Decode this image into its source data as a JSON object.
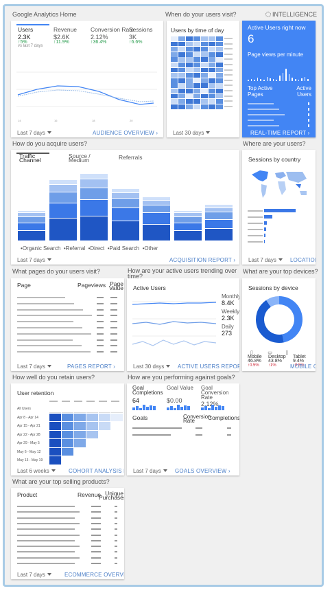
{
  "header": {
    "home_title": "Google Analytics Home",
    "intelligence_label": "INTELLIGENCE"
  },
  "sections": {
    "q_visit_time": "When do your users visit?",
    "q_acquire": "How do you acquire users?",
    "q_where": "Where are your users?",
    "q_pages": "What pages do your users visit?",
    "q_trending": "How are your active users trending over time?",
    "q_devices": "What are your top devices?",
    "q_retain": "How well do you retain users?",
    "q_goals": "How are you performing against goals?",
    "q_products": "What are your top selling products?"
  },
  "overview": {
    "metrics": [
      {
        "label": "Users",
        "value": "2.3K",
        "change": "↑5%",
        "note": "vs last 7 days"
      },
      {
        "label": "Revenue",
        "value": "$2.6K",
        "change": "↑11.9%"
      },
      {
        "label": "Conversion Rate",
        "value": "2.12%",
        "change": "↑36.4%"
      },
      {
        "label": "Sessions",
        "value": "3K",
        "change": "↑6.6%"
      }
    ],
    "range": "Last 7 days",
    "link": "AUDIENCE OVERVIEW"
  },
  "time_card": {
    "title": "Users by time of day",
    "range": "Last 30 days"
  },
  "realtime": {
    "title": "Active Users right now",
    "value": "6",
    "pageviews_label": "Page views per minute",
    "col1": "Top Active Pages",
    "col2": "Active Users",
    "link": "REAL-TIME REPORT",
    "colors": {
      "bg": "#4285f4"
    }
  },
  "acquisition": {
    "tabs": [
      "Traffic Channel",
      "Source / Medium",
      "Referrals"
    ],
    "legend": [
      "Organic Search",
      "Referral",
      "Direct",
      "Paid Search",
      "Other"
    ],
    "range": "Last 7 days",
    "link": "ACQUISITION REPORT"
  },
  "country": {
    "title": "Sessions by country",
    "range": "Last 7 days",
    "link": "LOCATION"
  },
  "pages": {
    "col1": "Page",
    "col2": "Pageviews",
    "col3": "Page Value",
    "range": "Last 7 days",
    "link": "PAGES REPORT"
  },
  "active": {
    "title": "Active Users",
    "stats": [
      {
        "label": "Monthly",
        "value": "8.4K"
      },
      {
        "label": "Weekly",
        "value": "2.3K"
      },
      {
        "label": "Daily",
        "value": "273"
      }
    ],
    "range": "Last 30 days",
    "link": "ACTIVE USERS REPORT"
  },
  "devices": {
    "title": "Sessions by device",
    "items": [
      {
        "label": "Mobile",
        "value": "46.8%",
        "change": "↑0.5%"
      },
      {
        "label": "Desktop",
        "value": "43.8%",
        "change": "↑1%"
      },
      {
        "label": "Tablet",
        "value": "9.4%",
        "change": "↑0.5%"
      }
    ],
    "link": "MOBILE OVERVIEW"
  },
  "retention": {
    "title": "User retention",
    "rows": [
      "All Users",
      "Apr 8 - Apr 14",
      "Apr 15 - Apr 21",
      "Apr 22 - Apr 28",
      "Apr 29 - May 5",
      "May 6 - May 12",
      "May 13 - May 19"
    ],
    "range": "Last 6 weeks",
    "link": "COHORT ANALYSIS REPORT"
  },
  "goals": {
    "metrics": [
      {
        "label": "Goal Completions",
        "value": "64"
      },
      {
        "label": "Goal Value",
        "value": "$0.00"
      },
      {
        "label": "Goal Conversion Rate",
        "value": "2.12%"
      }
    ],
    "col1": "Goals",
    "col2": "Conversion Rate",
    "col3": "Completions",
    "range": "Last 7 days",
    "link": "GOALS OVERVIEW"
  },
  "products": {
    "col1": "Product",
    "col2": "Revenue",
    "col3": "Unique Purchases",
    "range": "Last 7 days",
    "link": "ECOMMERCE OVERVIEW"
  }
}
